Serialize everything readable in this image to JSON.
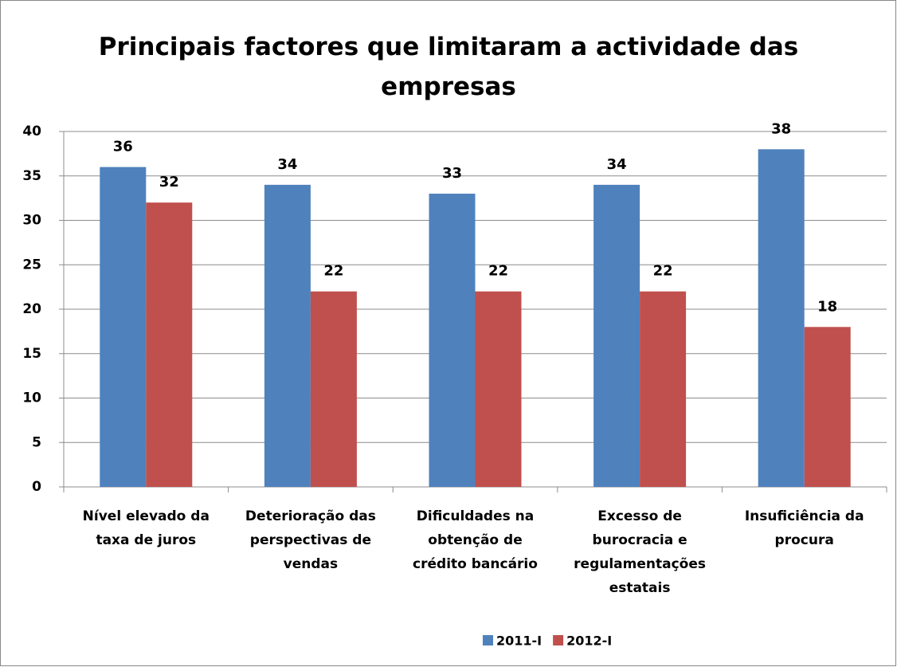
{
  "chart_data": {
    "type": "bar",
    "title": "Principais factores que limitaram a actividade das empresas",
    "categories": [
      [
        "Nível elevado da",
        "taxa de juros"
      ],
      [
        "Deterioração das",
        "perspectivas de",
        "vendas"
      ],
      [
        "Dificuldades na",
        "obtenção de",
        "crédito bancário"
      ],
      [
        "Excesso de",
        "burocracia e",
        "regulamentações",
        "estatais"
      ],
      [
        "Insuficiência da",
        "procura"
      ]
    ],
    "series": [
      {
        "name": "2011-I",
        "color": "#4f81bd",
        "values": [
          36,
          34,
          33,
          34,
          38
        ]
      },
      {
        "name": "2012-I",
        "color": "#c0504d",
        "values": [
          32,
          22,
          22,
          22,
          18
        ]
      }
    ],
    "ylim": [
      0,
      40
    ],
    "yticks": [
      0,
      5,
      10,
      15,
      20,
      25,
      30,
      35,
      40
    ],
    "grid": true,
    "legend": "bottom"
  }
}
